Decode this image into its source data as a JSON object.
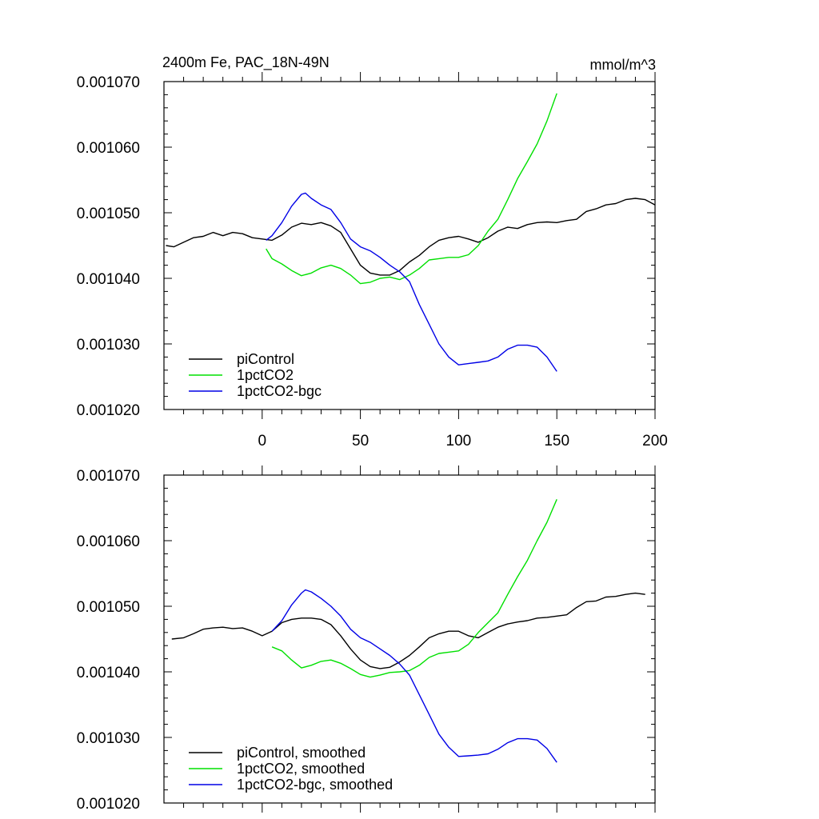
{
  "chart_data": [
    {
      "type": "line",
      "title": "2400m Fe, PAC_18N-49N",
      "units": "mmol/m^3",
      "xlim": [
        -50,
        200
      ],
      "ylim": [
        0.00102,
        0.00107
      ],
      "x_ticks": [
        0,
        50,
        100,
        150,
        200
      ],
      "x_tick_labels": [
        "0",
        "50",
        "100",
        "150",
        "200"
      ],
      "y_ticks": [
        0.00102,
        0.00103,
        0.00104,
        0.00105,
        0.00106,
        0.00107
      ],
      "y_tick_labels": [
        "0.001020",
        "0.001030",
        "0.001040",
        "0.001050",
        "0.001060",
        "0.001070"
      ],
      "legend_position": "bottom-left",
      "series": [
        {
          "name": "piControl",
          "color": "#000000",
          "x": [
            -49,
            -45,
            -40,
            -35,
            -30,
            -25,
            -20,
            -15,
            -10,
            -5,
            0,
            5,
            10,
            15,
            20,
            25,
            30,
            35,
            40,
            45,
            50,
            55,
            60,
            65,
            70,
            75,
            80,
            85,
            90,
            95,
            100,
            105,
            110,
            115,
            120,
            125,
            130,
            135,
            140,
            145,
            150,
            155,
            160,
            165,
            170,
            175,
            180,
            185,
            190,
            195,
            200
          ],
          "y": [
            0.001045,
            0.0010448,
            0.0010455,
            0.0010462,
            0.0010464,
            0.001047,
            0.0010465,
            0.001047,
            0.0010468,
            0.0010462,
            0.001046,
            0.0010458,
            0.0010466,
            0.0010478,
            0.0010484,
            0.0010482,
            0.0010485,
            0.001048,
            0.001047,
            0.0010445,
            0.001042,
            0.0010408,
            0.0010405,
            0.0010405,
            0.0010412,
            0.0010425,
            0.0010435,
            0.0010448,
            0.0010458,
            0.0010462,
            0.0010464,
            0.001046,
            0.0010455,
            0.0010462,
            0.0010472,
            0.0010478,
            0.0010476,
            0.0010482,
            0.0010485,
            0.0010486,
            0.0010485,
            0.0010488,
            0.001049,
            0.0010502,
            0.0010506,
            0.0010512,
            0.0010514,
            0.001052,
            0.0010522,
            0.001052,
            0.0010512
          ]
        },
        {
          "name": "1pctCO2",
          "color": "#00e000",
          "x": [
            2,
            5,
            10,
            15,
            20,
            25,
            30,
            35,
            40,
            45,
            50,
            55,
            60,
            65,
            70,
            75,
            80,
            85,
            90,
            95,
            100,
            105,
            110,
            115,
            120,
            125,
            130,
            135,
            140,
            145,
            150
          ],
          "y": [
            0.0010445,
            0.001043,
            0.0010422,
            0.0010412,
            0.0010404,
            0.0010408,
            0.0010416,
            0.001042,
            0.0010415,
            0.0010405,
            0.0010392,
            0.0010394,
            0.00104,
            0.0010402,
            0.0010398,
            0.0010405,
            0.0010415,
            0.0010428,
            0.001043,
            0.0010432,
            0.0010432,
            0.0010436,
            0.001045,
            0.0010472,
            0.001049,
            0.001052,
            0.0010552,
            0.0010578,
            0.0010605,
            0.001064,
            0.0010682
          ]
        },
        {
          "name": "1pctCO2-bgc",
          "color": "#0000e6",
          "x": [
            2,
            5,
            10,
            15,
            20,
            22,
            25,
            30,
            35,
            40,
            45,
            50,
            55,
            60,
            65,
            70,
            75,
            80,
            85,
            90,
            95,
            100,
            105,
            110,
            115,
            120,
            125,
            130,
            135,
            140,
            145,
            150
          ],
          "y": [
            0.0010458,
            0.0010465,
            0.0010485,
            0.001051,
            0.0010528,
            0.001053,
            0.0010522,
            0.0010512,
            0.0010505,
            0.0010485,
            0.001046,
            0.0010448,
            0.0010442,
            0.0010432,
            0.001042,
            0.001041,
            0.0010395,
            0.001036,
            0.001033,
            0.00103,
            0.001028,
            0.0010268,
            0.001027,
            0.0010272,
            0.0010274,
            0.001028,
            0.0010292,
            0.0010298,
            0.0010298,
            0.0010295,
            0.001028,
            0.0010258
          ]
        }
      ]
    },
    {
      "type": "line",
      "xlim": [
        -50,
        200
      ],
      "ylim": [
        0.00102,
        0.00107
      ],
      "x_ticks": [
        0,
        50,
        100,
        150,
        200
      ],
      "y_ticks": [
        0.00102,
        0.00103,
        0.00104,
        0.00105,
        0.00106,
        0.00107
      ],
      "y_tick_labels": [
        "0.001020",
        "0.001030",
        "0.001040",
        "0.001050",
        "0.001060",
        "0.001070"
      ],
      "legend_position": "bottom-left",
      "series": [
        {
          "name": "piControl, smoothed",
          "color": "#000000",
          "x": [
            -46,
            -40,
            -35,
            -30,
            -25,
            -20,
            -15,
            -10,
            -5,
            0,
            5,
            10,
            15,
            20,
            25,
            30,
            35,
            40,
            45,
            50,
            55,
            60,
            65,
            70,
            75,
            80,
            85,
            90,
            95,
            100,
            105,
            110,
            115,
            120,
            125,
            130,
            135,
            140,
            145,
            150,
            155,
            160,
            165,
            170,
            175,
            180,
            185,
            190,
            195
          ],
          "y": [
            0.001045,
            0.0010452,
            0.0010458,
            0.0010465,
            0.0010467,
            0.0010468,
            0.0010466,
            0.0010467,
            0.0010462,
            0.0010455,
            0.0010462,
            0.0010475,
            0.001048,
            0.0010482,
            0.0010482,
            0.001048,
            0.0010472,
            0.0010455,
            0.0010435,
            0.0010418,
            0.0010408,
            0.0010405,
            0.0010407,
            0.0010415,
            0.0010425,
            0.0010438,
            0.0010452,
            0.0010458,
            0.0010462,
            0.0010462,
            0.0010455,
            0.0010452,
            0.001046,
            0.0010468,
            0.0010473,
            0.0010476,
            0.0010478,
            0.0010482,
            0.0010483,
            0.0010485,
            0.0010487,
            0.0010498,
            0.0010507,
            0.0010508,
            0.0010514,
            0.0010515,
            0.0010518,
            0.001052,
            0.0010518
          ]
        },
        {
          "name": "1pctCO2, smoothed",
          "color": "#00e000",
          "x": [
            5,
            10,
            15,
            20,
            25,
            30,
            35,
            40,
            45,
            50,
            55,
            60,
            65,
            70,
            75,
            80,
            85,
            90,
            95,
            100,
            105,
            110,
            115,
            120,
            125,
            130,
            135,
            140,
            145,
            150
          ],
          "y": [
            0.0010438,
            0.0010432,
            0.0010418,
            0.0010406,
            0.001041,
            0.0010416,
            0.0010418,
            0.0010413,
            0.0010405,
            0.0010396,
            0.0010392,
            0.0010395,
            0.0010399,
            0.00104,
            0.0010402,
            0.001041,
            0.0010422,
            0.0010428,
            0.001043,
            0.0010432,
            0.0010442,
            0.001046,
            0.0010475,
            0.001049,
            0.0010518,
            0.0010545,
            0.001057,
            0.00106,
            0.0010628,
            0.0010663
          ]
        },
        {
          "name": "1pctCO2-bgc, smoothed",
          "color": "#0000e6",
          "x": [
            5,
            10,
            15,
            20,
            22,
            25,
            30,
            35,
            40,
            45,
            50,
            55,
            60,
            65,
            70,
            75,
            80,
            85,
            90,
            95,
            100,
            105,
            110,
            115,
            120,
            125,
            130,
            135,
            140,
            145,
            150
          ],
          "y": [
            0.0010462,
            0.0010478,
            0.0010502,
            0.001052,
            0.0010525,
            0.0010522,
            0.0010512,
            0.00105,
            0.0010485,
            0.0010465,
            0.0010452,
            0.0010445,
            0.0010435,
            0.0010425,
            0.0010412,
            0.0010395,
            0.0010365,
            0.0010335,
            0.0010305,
            0.0010285,
            0.0010271,
            0.0010272,
            0.0010273,
            0.0010275,
            0.0010282,
            0.0010292,
            0.0010298,
            0.0010298,
            0.0010296,
            0.0010283,
            0.0010262
          ]
        }
      ]
    }
  ]
}
